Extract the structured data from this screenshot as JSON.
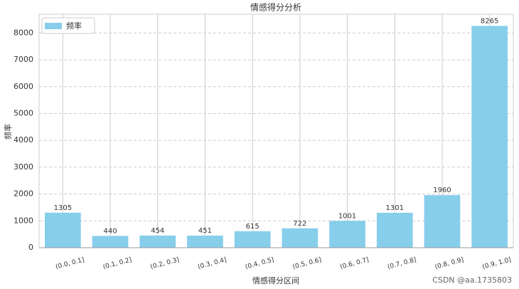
{
  "chart_data": {
    "type": "bar",
    "title": "情感得分分析",
    "xlabel": "情感得分区间",
    "ylabel": "频率",
    "categories": [
      "(0.0, 0.1]",
      "(0.1, 0.2]",
      "(0.2, 0.3]",
      "(0.3, 0.4]",
      "(0.4, 0.5]",
      "(0.5, 0.6]",
      "(0.6, 0.7]",
      "(0.7, 0.8]",
      "(0.8, 0.9]",
      "(0.9, 1.0]"
    ],
    "series": [
      {
        "name": "频率",
        "color": "#87ceeb",
        "values": [
          1305,
          440,
          454,
          451,
          615,
          722,
          1001,
          1301,
          1960,
          8265
        ]
      }
    ],
    "ylim": [
      0,
      8700
    ],
    "yticks": [
      0,
      1000,
      2000,
      3000,
      4000,
      5000,
      6000,
      7000,
      8000
    ],
    "grid": true,
    "legend": "upper left",
    "watermark": "CSDN @aa.1735803"
  }
}
